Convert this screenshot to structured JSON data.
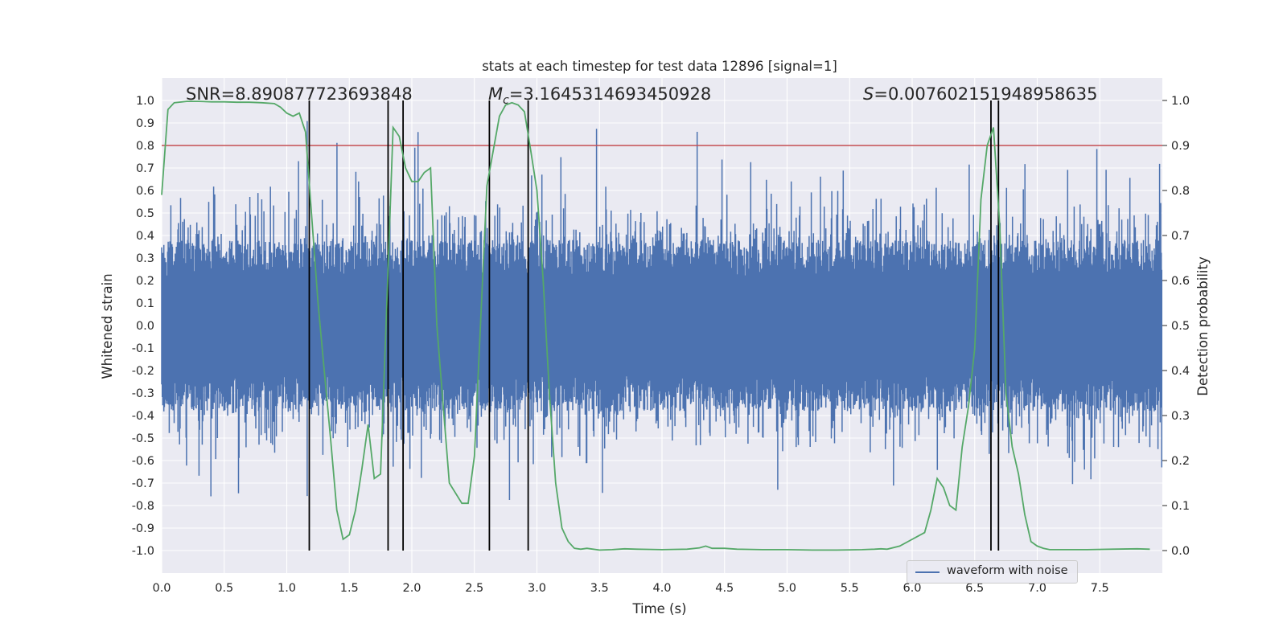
{
  "chart_data": {
    "type": "line",
    "title": "stats at each timestep for test data 12896 [signal=1]",
    "xlabel": "Time (s)",
    "ylabel": "Whitened strain",
    "ylabel_right": "Detection probability",
    "xlim": [
      0.0,
      8.0
    ],
    "ylim": [
      -1.1,
      1.1
    ],
    "ylim_right": [
      -0.05,
      1.05
    ],
    "xticks": [
      "0.0",
      "0.5",
      "1.0",
      "1.5",
      "2.0",
      "2.5",
      "3.0",
      "3.5",
      "4.0",
      "4.5",
      "5.0",
      "5.5",
      "6.0",
      "6.5",
      "7.0",
      "7.5"
    ],
    "yticks": [
      "1.0",
      "0.9",
      "0.8",
      "0.7",
      "0.6",
      "0.5",
      "0.4",
      "0.3",
      "0.2",
      "0.1",
      "0.0",
      "-0.1",
      "-0.2",
      "-0.3",
      "-0.4",
      "-0.5",
      "-0.6",
      "-0.7",
      "-0.8",
      "-0.9",
      "-1.0"
    ],
    "yticks_right": [
      "1.0",
      "0.9",
      "0.8",
      "0.7",
      "0.6",
      "0.5",
      "0.4",
      "0.3",
      "0.2",
      "0.1",
      "0.0"
    ],
    "annotations": {
      "snr": "SNR=8.890877723693848",
      "mc_symbol": "M",
      "mc_sub": "c",
      "mc_value": "=3.1645314693450928",
      "s_symbol": "S",
      "s_value": "=0.007602151948958635"
    },
    "grid": true,
    "legend_position": "lower right",
    "series": [
      {
        "name": "waveform with noise",
        "axis": "left",
        "color": "#4c72b0",
        "description_values": "noisy whitened strain, amplitude roughly within [-0.98, 0.97]"
      },
      {
        "axis": "right",
        "color": "#55a868",
        "x": [
          0.0,
          0.05,
          0.1,
          0.2,
          0.3,
          0.4,
          0.5,
          0.6,
          0.7,
          0.8,
          0.9,
          0.95,
          1.0,
          1.05,
          1.1,
          1.15,
          1.2,
          1.25,
          1.3,
          1.35,
          1.4,
          1.45,
          1.5,
          1.55,
          1.6,
          1.65,
          1.7,
          1.75,
          1.8,
          1.85,
          1.9,
          1.95,
          2.0,
          2.05,
          2.1,
          2.15,
          2.2,
          2.3,
          2.4,
          2.45,
          2.5,
          2.6,
          2.7,
          2.75,
          2.8,
          2.85,
          2.9,
          2.95,
          3.0,
          3.05,
          3.1,
          3.15,
          3.2,
          3.25,
          3.3,
          3.35,
          3.4,
          3.45,
          3.5,
          3.6,
          3.7,
          3.8,
          4.0,
          4.2,
          4.3,
          4.35,
          4.4,
          4.5,
          4.6,
          4.8,
          5.0,
          5.2,
          5.4,
          5.6,
          5.7,
          5.75,
          5.8,
          5.9,
          6.0,
          6.1,
          6.15,
          6.2,
          6.25,
          6.3,
          6.35,
          6.4,
          6.45,
          6.5,
          6.55,
          6.6,
          6.65,
          6.7,
          6.75,
          6.8,
          6.85,
          6.9,
          6.95,
          7.0,
          7.05,
          7.1,
          7.2,
          7.4,
          7.6,
          7.8,
          7.9
        ],
        "values": [
          0.79,
          0.98,
          0.995,
          0.998,
          0.998,
          0.997,
          0.997,
          0.996,
          0.996,
          0.995,
          0.993,
          0.985,
          0.972,
          0.965,
          0.972,
          0.93,
          0.74,
          0.55,
          0.4,
          0.25,
          0.09,
          0.025,
          0.035,
          0.09,
          0.18,
          0.28,
          0.16,
          0.17,
          0.55,
          0.94,
          0.92,
          0.85,
          0.82,
          0.82,
          0.84,
          0.85,
          0.5,
          0.15,
          0.105,
          0.105,
          0.21,
          0.81,
          0.965,
          0.99,
          0.995,
          0.99,
          0.975,
          0.89,
          0.8,
          0.6,
          0.35,
          0.15,
          0.05,
          0.02,
          0.005,
          0.003,
          0.005,
          0.003,
          0.001,
          0.002,
          0.004,
          0.003,
          0.002,
          0.003,
          0.006,
          0.01,
          0.005,
          0.005,
          0.003,
          0.002,
          0.002,
          0.001,
          0.001,
          0.002,
          0.003,
          0.004,
          0.003,
          0.01,
          0.025,
          0.04,
          0.09,
          0.16,
          0.14,
          0.1,
          0.09,
          0.23,
          0.32,
          0.45,
          0.78,
          0.9,
          0.94,
          0.72,
          0.35,
          0.23,
          0.17,
          0.08,
          0.02,
          0.01,
          0.005,
          0.002,
          0.002,
          0.002,
          0.003,
          0.004,
          0.003
        ]
      }
    ],
    "threshold_line": {
      "axis": "right",
      "value": 0.9,
      "color": "#c44e52"
    },
    "vertical_markers_x": [
      1.18,
      1.81,
      1.93,
      2.62,
      2.93,
      6.63,
      6.69
    ],
    "vertical_marker_color": "#000000"
  }
}
